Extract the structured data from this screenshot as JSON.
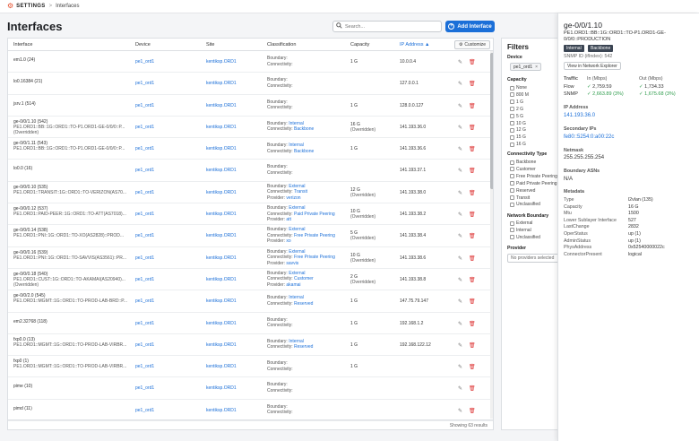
{
  "topbar": {
    "app": "SETTINGS",
    "separator": ">",
    "crumb": "Interfaces"
  },
  "page_title": "Interfaces",
  "search": {
    "placeholder": "Search..."
  },
  "add_button": "Add Interface",
  "table": {
    "headers": {
      "interface": "Interface",
      "device": "Device",
      "site": "Site",
      "classification": "Classification",
      "capacity": "Capacity",
      "ip": "IP Address"
    },
    "customize": "Customize",
    "footer": "Showing 63 results",
    "rows": [
      {
        "iface": "em1.0 (24)",
        "desc": "",
        "device": "pe1_ord1",
        "site": "kentiksp.ORD1",
        "c1k": "Boundary:",
        "c1v": "",
        "c2k": "Connectivity:",
        "c2v": "",
        "c3k": "",
        "c3v": "",
        "cap": "1 G",
        "cap2": "",
        "ip": "10.0.0.4"
      },
      {
        "iface": "lo0.16384 (21)",
        "desc": "",
        "device": "pe1_ord1",
        "site": "kentiksp.ORD1",
        "c1k": "Boundary:",
        "c1v": "",
        "c2k": "Connectivity:",
        "c2v": "",
        "c3k": "",
        "c3v": "",
        "cap": "",
        "cap2": "",
        "ip": "127.0.0.1"
      },
      {
        "iface": "jsrv.1 (514)",
        "desc": "",
        "device": "pe1_ord1",
        "site": "kentiksp.ORD1",
        "c1k": "Boundary:",
        "c1v": "",
        "c2k": "Connectivity:",
        "c2v": "",
        "c3k": "",
        "c3v": "",
        "cap": "1 G",
        "cap2": "",
        "ip": "128.0.0.127"
      },
      {
        "iface": "ge-0/0/1.10 (542)",
        "desc": "PE1.ORD1::BB::1G::ORD1::TO-P1.ORD1-GE-0/0/0::P...",
        "desc2": "(Overridden)",
        "device": "pe1_ord1",
        "site": "kentiksp.ORD1",
        "c1k": "Boundary:",
        "c1v": "Internal",
        "c2k": "Connectivity:",
        "c2v": "Backbone",
        "c3k": "",
        "c3v": "",
        "cap": "16 G",
        "cap2": "(Overridden)",
        "ip": "141.193.36.0"
      },
      {
        "iface": "ge-0/0/1.11 (543)",
        "desc": "PE1.ORD1::BB::1G::ORD1::TO-P1.ORD1-GE-0/0/0::P...",
        "device": "pe1_ord1",
        "site": "kentiksp.ORD1",
        "c1k": "Boundary:",
        "c1v": "Internal",
        "c2k": "Connectivity:",
        "c2v": "Backbone",
        "c3k": "",
        "c3v": "",
        "cap": "1 G",
        "cap2": "",
        "ip": "141.193.36.6"
      },
      {
        "iface": "lo0.0 (16)",
        "desc": "",
        "device": "pe1_ord1",
        "site": "kentiksp.ORD1",
        "c1k": "Boundary:",
        "c1v": "",
        "c2k": "Connectivity:",
        "c2v": "",
        "c3k": "",
        "c3v": "",
        "cap": "",
        "cap2": "",
        "ip": "141.193.37.1"
      },
      {
        "iface": "ge-0/0/0.10 (535)",
        "desc": "PE1.ORD1::TRANSIT::1G::ORD1::TO-VERIZON(AS70...",
        "device": "pe1_ord1",
        "site": "kentiksp.ORD1",
        "c1k": "Boundary:",
        "c1v": "External",
        "c2k": "Connectivity:",
        "c2v": "Transit",
        "c3k": "Provider:",
        "c3v": "verizon",
        "cap": "12 G",
        "cap2": "(Overridden)",
        "ip": "141.193.38.0"
      },
      {
        "iface": "ge-0/0/0.12 (537)",
        "desc": "PE1.ORD1::PAID-PEER::1G::ORD1::TO-ATT(AS7018)...",
        "device": "pe1_ord1",
        "site": "kentiksp.ORD1",
        "c1k": "Boundary:",
        "c1v": "External",
        "c2k": "Connectivity:",
        "c2v": "Paid Private Peering",
        "c3k": "Provider:",
        "c3v": "att",
        "cap": "10 G",
        "cap2": "(Overridden)",
        "ip": "141.193.38.2"
      },
      {
        "iface": "ge-0/0/0.14 (538)",
        "desc": "PE1.ORD1::PNI::1G::ORD1::TO-XO(AS2828)::PROD...",
        "device": "pe1_ord1",
        "site": "kentiksp.ORD1",
        "c1k": "Boundary:",
        "c1v": "External",
        "c2k": "Connectivity:",
        "c2v": "Free Private Peering",
        "c3k": "Provider:",
        "c3v": "xo",
        "cap": "5 G",
        "cap2": "(Overridden)",
        "ip": "141.193.38.4"
      },
      {
        "iface": "ge-0/0/0.16 (539)",
        "desc": "PE1.ORD1::PNI::1G::ORD1::TO-SAVVIS(AS3561)::PR...",
        "device": "pe1_ord1",
        "site": "kentiksp.ORD1",
        "c1k": "Boundary:",
        "c1v": "External",
        "c2k": "Connectivity:",
        "c2v": "Free Private Peering",
        "c3k": "Provider:",
        "c3v": "savvis",
        "cap": "10 G",
        "cap2": "(Overridden)",
        "ip": "141.193.38.6"
      },
      {
        "iface": "ge-0/0/0.18 (540)",
        "desc": "PE1.ORD1::CUST::1G::ORD1::TO-AKAMAI(AS20940)...",
        "desc2": "(Overridden)",
        "device": "pe1_ord1",
        "site": "kentiksp.ORD1",
        "c1k": "Boundary:",
        "c1v": "External",
        "c2k": "Connectivity:",
        "c2v": "Customer",
        "c3k": "Provider:",
        "c3v": "akamai",
        "cap": "2 G",
        "cap2": "(Overridden)",
        "ip": "141.193.38.8"
      },
      {
        "iface": "ge-0/0/2.0 (545)",
        "desc": "PE1.ORD1::MGMT::1G::ORD1::TO-PROD-LAB-BRD::P...",
        "device": "pe1_ord1",
        "site": "kentiksp.ORD1",
        "c1k": "Boundary:",
        "c1v": "Internal",
        "c2k": "Connectivity:",
        "c2v": "Reserved",
        "c3k": "",
        "c3v": "",
        "cap": "1 G",
        "cap2": "",
        "ip": "147.75.79.147"
      },
      {
        "iface": "em2.32768 (118)",
        "desc": "",
        "device": "pe1_ord1",
        "site": "kentiksp.ORD1",
        "c1k": "Boundary:",
        "c1v": "",
        "c2k": "Connectivity:",
        "c2v": "",
        "c3k": "",
        "c3v": "",
        "cap": "1 G",
        "cap2": "",
        "ip": "192.168.1.2"
      },
      {
        "iface": "fxp0.0 (13)",
        "desc": "PE1.ORD1::MGMT::1G::ORD1::TO-PROD-LAB-VIRBR...",
        "device": "pe1_ord1",
        "site": "kentiksp.ORD1",
        "c1k": "Boundary:",
        "c1v": "Internal",
        "c2k": "Connectivity:",
        "c2v": "Reserved",
        "c3k": "",
        "c3v": "",
        "cap": "1 G",
        "cap2": "",
        "ip": "192.168.122.12"
      },
      {
        "iface": "fxp0 (1)",
        "desc": "PE1.ORD1::MGMT::1G::ORD1::TO-PROD-LAB-VIRBR...",
        "device": "pe1_ord1",
        "site": "kentiksp.ORD1",
        "c1k": "Boundary:",
        "c1v": "",
        "c2k": "Connectivity:",
        "c2v": "",
        "c3k": "",
        "c3v": "",
        "cap": "1 G",
        "cap2": "",
        "ip": ""
      },
      {
        "iface": "pime (10)",
        "desc": "",
        "device": "pe1_ord1",
        "site": "kentiksp.ORD1",
        "c1k": "Boundary:",
        "c1v": "",
        "c2k": "Connectivity:",
        "c2v": "",
        "c3k": "",
        "c3v": "",
        "cap": "",
        "cap2": "",
        "ip": ""
      },
      {
        "iface": "pimd (11)",
        "desc": "",
        "device": "pe1_ord1",
        "site": "kentiksp.ORD1",
        "c1k": "Boundary:",
        "c1v": "",
        "c2k": "Connectivity:",
        "c2v": "",
        "c3k": "",
        "c3v": "",
        "cap": "",
        "cap2": "",
        "ip": ""
      }
    ]
  },
  "filters": {
    "title": "Filters",
    "device_label": "Device",
    "device_chip": "pe1_ord1",
    "capacity_label": "Capacity",
    "capacity_options": [
      "None",
      "800 M",
      "1 G",
      "2 G",
      "5 G",
      "10 G",
      "12 G",
      "15 G",
      "16 G"
    ],
    "connectivity_label": "Connectivity Type",
    "connectivity_options": [
      "Backbone",
      "Customer",
      "Free Private Peering",
      "Paid Private Peering",
      "Reserved",
      "Transit",
      "Unclassified"
    ],
    "boundary_label": "Network Boundary",
    "boundary_options": [
      "External",
      "Internal",
      "Unclassified"
    ],
    "provider_label": "Provider",
    "provider_placeholder": "No providers selected"
  },
  "details": {
    "name": "ge-0/0/1.10",
    "description": "PE1.ORD1::BB::1G::ORD1::TO-P1.ORD1-GE-0/0/0::PRODUCTION",
    "tags": [
      "Internal",
      "Backbone"
    ],
    "snmp_id": "SNMP ID (ifIndex): 542",
    "view_button": "View in Network Explorer",
    "traffic_label": "Traffic",
    "in_label": "In (Mbps)",
    "out_label": "Out (Mbps)",
    "flow_label": "Flow",
    "snmp_label": "SNMP",
    "flow_in": "2,759.59",
    "flow_out": "1,734.33",
    "snmp_in": "2,663.89 (3%)",
    "snmp_out": "1,675.68 (3%)",
    "ip_label": "IP Address",
    "ip": "141.193.36.0",
    "secondary_label": "Secondary IPs",
    "secondary": "fe80::5254:0:a00:22c",
    "netmask_label": "Netmask",
    "netmask": "255.255.255.254",
    "asn_label": "Boundary ASNs",
    "asn": "N/A",
    "metadata_label": "Metadata",
    "metadata": [
      {
        "k": "Type",
        "v": "l2vlan (135)"
      },
      {
        "k": "Capacity",
        "v": "16 G"
      },
      {
        "k": "Mtu",
        "v": "1500"
      },
      {
        "k": "Lower Sublayer Interface",
        "v": "527"
      },
      {
        "k": "LastChange",
        "v": "2832"
      },
      {
        "k": "OperStatus",
        "v": "up (1)"
      },
      {
        "k": "AdminStatus",
        "v": "up (1)"
      },
      {
        "k": "PhysAddress",
        "v": "0x52540000022c"
      },
      {
        "k": "ConnectorPresent",
        "v": "logical"
      }
    ]
  }
}
